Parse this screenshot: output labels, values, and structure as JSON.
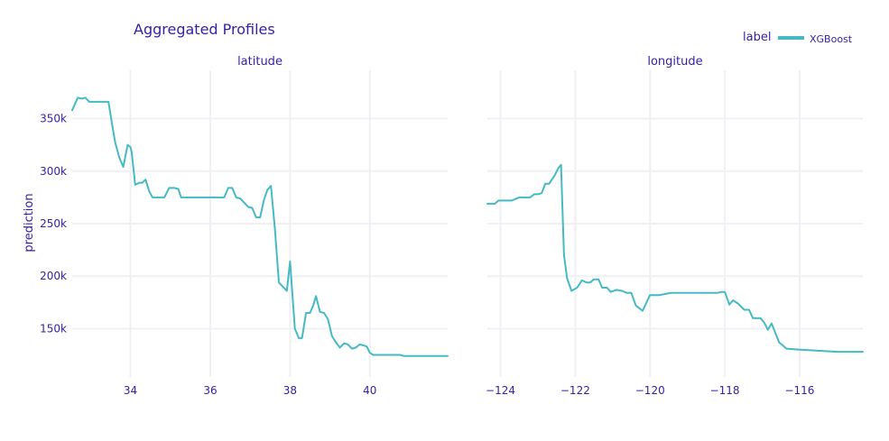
{
  "chart_data": {
    "type": "line",
    "title": "Aggregated Profiles",
    "ylabel": "prediction",
    "legend": {
      "title": "label",
      "placement": "top-right",
      "entries": [
        "XGBoost"
      ]
    },
    "series_color": "#46bac2",
    "text_color": "#371ea3",
    "grid": true,
    "ylim": [
      104000,
      396000
    ],
    "yticks": [
      150000,
      200000,
      250000,
      300000,
      350000
    ],
    "ytick_labels": [
      "150k",
      "200k",
      "250k",
      "300k",
      "350k"
    ],
    "panels": [
      {
        "subtitle": "latitude",
        "xlim": [
          32.54,
          41.95
        ],
        "xticks": [
          34,
          36,
          38,
          40
        ],
        "xtick_labels": [
          "34",
          "36",
          "38",
          "40"
        ],
        "series": [
          {
            "name": "XGBoost",
            "x": [
              32.54,
              32.68,
              32.78,
              32.87,
              32.97,
              33.05,
              33.15,
              33.25,
              33.35,
              33.45,
              33.55,
              33.62,
              33.72,
              33.82,
              33.93,
              34.0,
              34.03,
              34.12,
              34.22,
              34.3,
              34.38,
              34.47,
              34.55,
              34.65,
              34.72,
              34.85,
              34.97,
              35.1,
              35.2,
              35.27,
              35.37,
              35.55,
              35.75,
              35.95,
              36.15,
              36.35,
              36.45,
              36.55,
              36.65,
              36.75,
              36.85,
              36.95,
              37.05,
              37.15,
              37.25,
              37.35,
              37.43,
              37.52,
              37.62,
              37.72,
              37.82,
              37.92,
              38.0,
              38.12,
              38.22,
              38.3,
              38.4,
              38.5,
              38.58,
              38.65,
              38.75,
              38.85,
              38.95,
              39.05,
              39.15,
              39.25,
              39.35,
              39.45,
              39.55,
              39.65,
              39.75,
              39.85,
              39.92,
              40.0,
              40.08,
              40.2,
              40.4,
              40.6,
              40.75,
              40.85,
              41.0,
              41.3,
              41.6,
              41.95
            ],
            "y": [
              358000,
              370000,
              369000,
              370000,
              366000,
              366000,
              366000,
              366000,
              366000,
              366000,
              342000,
              327000,
              313000,
              304000,
              325000,
              323000,
              318000,
              287000,
              289000,
              289000,
              292000,
              281000,
              275000,
              275000,
              275000,
              275000,
              284000,
              284000,
              283000,
              275000,
              275000,
              275000,
              275000,
              275000,
              275000,
              275000,
              284000,
              284000,
              275000,
              274000,
              270000,
              266000,
              265000,
              256000,
              256000,
              273000,
              282000,
              286000,
              245000,
              194000,
              190000,
              186000,
              214000,
              150000,
              141000,
              141000,
              165000,
              165000,
              172000,
              181000,
              166000,
              165000,
              159000,
              143000,
              137000,
              132000,
              136000,
              135000,
              131000,
              132000,
              135000,
              134000,
              133000,
              127000,
              125000,
              125000,
              125000,
              125000,
              125000,
              124000,
              124000,
              124000,
              124000,
              124000
            ]
          }
        ]
      },
      {
        "subtitle": "longitude",
        "xlim": [
          -124.35,
          -114.31
        ],
        "xticks": [
          -124,
          -122,
          -120,
          -118,
          -116
        ],
        "xtick_labels": [
          "−124",
          "−122",
          "−120",
          "−118",
          "−116"
        ],
        "series": [
          {
            "name": "XGBoost",
            "x": [
              -124.35,
              -124.15,
              -124.05,
              -123.9,
              -123.7,
              -123.5,
              -123.35,
              -123.2,
              -123.1,
              -123.0,
              -122.9,
              -122.8,
              -122.7,
              -122.55,
              -122.45,
              -122.38,
              -122.3,
              -122.22,
              -122.1,
              -121.95,
              -121.82,
              -121.7,
              -121.6,
              -121.5,
              -121.38,
              -121.28,
              -121.15,
              -121.05,
              -120.9,
              -120.75,
              -120.62,
              -120.5,
              -120.38,
              -120.2,
              -120.0,
              -119.9,
              -119.75,
              -119.6,
              -119.45,
              -119.25,
              -119.0,
              -118.75,
              -118.6,
              -118.45,
              -118.3,
              -118.2,
              -118.1,
              -118.0,
              -117.88,
              -117.78,
              -117.65,
              -117.48,
              -117.35,
              -117.25,
              -117.15,
              -117.05,
              -116.95,
              -116.85,
              -116.75,
              -116.55,
              -116.35,
              -116.0,
              -115.5,
              -115.0,
              -114.5,
              -114.31
            ],
            "y": [
              269000,
              269000,
              272000,
              272000,
              272000,
              275000,
              275000,
              275000,
              278000,
              278000,
              279000,
              288000,
              288000,
              296000,
              303000,
              306000,
              220000,
              198000,
              186000,
              189000,
              196000,
              194000,
              194000,
              197000,
              197000,
              189000,
              189000,
              185000,
              187000,
              186000,
              184000,
              184000,
              172000,
              167000,
              182000,
              182000,
              182000,
              183000,
              184000,
              184000,
              184000,
              184000,
              184000,
              184000,
              184000,
              184000,
              185000,
              185000,
              173000,
              177000,
              174000,
              168000,
              168000,
              160000,
              160000,
              160000,
              156000,
              149000,
              155000,
              137000,
              131000,
              130000,
              129000,
              128000,
              128000,
              128000
            ]
          }
        ]
      }
    ]
  }
}
